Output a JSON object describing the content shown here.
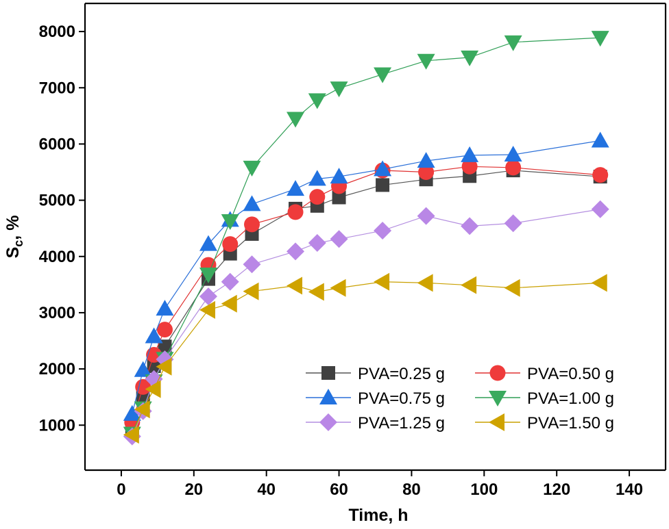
{
  "chart_data": {
    "type": "line",
    "xlabel": "Time, h",
    "ylabel_main": "S",
    "ylabel_sub": "c",
    "ylabel_suffix": ", %",
    "xlim": [
      -10,
      150
    ],
    "ylim": [
      200,
      8500
    ],
    "xticks": [
      0,
      20,
      40,
      60,
      80,
      100,
      120,
      140
    ],
    "yticks": [
      1000,
      2000,
      3000,
      4000,
      5000,
      6000,
      7000,
      8000
    ],
    "legend_position": "bottom-right",
    "series": [
      {
        "name": "PVA=0.25 g",
        "marker": "square",
        "line_color": "#555555",
        "marker_color": "#404040",
        "x": [
          3,
          6,
          9,
          12,
          24,
          30,
          36,
          48,
          54,
          60,
          72,
          84,
          96,
          108,
          132
        ],
        "y": [
          900,
          1500,
          2050,
          2400,
          3600,
          4050,
          4400,
          4850,
          4900,
          5050,
          5270,
          5370,
          5430,
          5530,
          5420
        ]
      },
      {
        "name": "PVA=0.50 g",
        "marker": "circle",
        "line_color": "#e03030",
        "marker_color": "#ef3b3b",
        "x": [
          3,
          6,
          9,
          12,
          24,
          30,
          36,
          48,
          54,
          60,
          72,
          84,
          96,
          108,
          132
        ],
        "y": [
          1050,
          1680,
          2250,
          2700,
          3850,
          4220,
          4570,
          4790,
          5060,
          5250,
          5530,
          5500,
          5600,
          5580,
          5450
        ]
      },
      {
        "name": "PVA=0.75 g",
        "marker": "triangle-up",
        "line_color": "#2a6fd8",
        "marker_color": "#2272e0",
        "x": [
          3,
          6,
          9,
          12,
          24,
          30,
          36,
          48,
          54,
          60,
          72,
          84,
          96,
          108,
          132
        ],
        "y": [
          1200,
          1980,
          2580,
          3070,
          4220,
          4650,
          4930,
          5200,
          5380,
          5420,
          5550,
          5700,
          5800,
          5810,
          6060
        ]
      },
      {
        "name": "PVA=1.00 g",
        "marker": "triangle-down",
        "line_color": "#2e9e55",
        "marker_color": "#3aaa5e",
        "x": [
          3,
          6,
          9,
          12,
          24,
          30,
          36,
          48,
          54,
          60,
          72,
          84,
          96,
          108,
          132
        ],
        "y": [
          850,
          1300,
          1780,
          2180,
          3680,
          4630,
          5580,
          6450,
          6780,
          6990,
          7240,
          7480,
          7540,
          7810,
          7890
        ]
      },
      {
        "name": "PVA=1.25 g",
        "marker": "diamond",
        "line_color": "#b48ee0",
        "marker_color": "#b987e6",
        "x": [
          3,
          6,
          9,
          12,
          24,
          30,
          36,
          48,
          54,
          60,
          72,
          84,
          96,
          108,
          132
        ],
        "y": [
          800,
          1250,
          1820,
          2170,
          3290,
          3550,
          3860,
          4090,
          4240,
          4310,
          4460,
          4720,
          4540,
          4590,
          4840
        ]
      },
      {
        "name": "PVA=1.50 g",
        "marker": "triangle-left",
        "line_color": "#c9a000",
        "marker_color": "#cfa300",
        "x": [
          3,
          6,
          9,
          12,
          24,
          30,
          36,
          48,
          54,
          60,
          72,
          84,
          96,
          108,
          132
        ],
        "y": [
          830,
          1280,
          1640,
          2040,
          3050,
          3160,
          3380,
          3480,
          3370,
          3440,
          3550,
          3530,
          3490,
          3440,
          3530
        ]
      }
    ]
  }
}
